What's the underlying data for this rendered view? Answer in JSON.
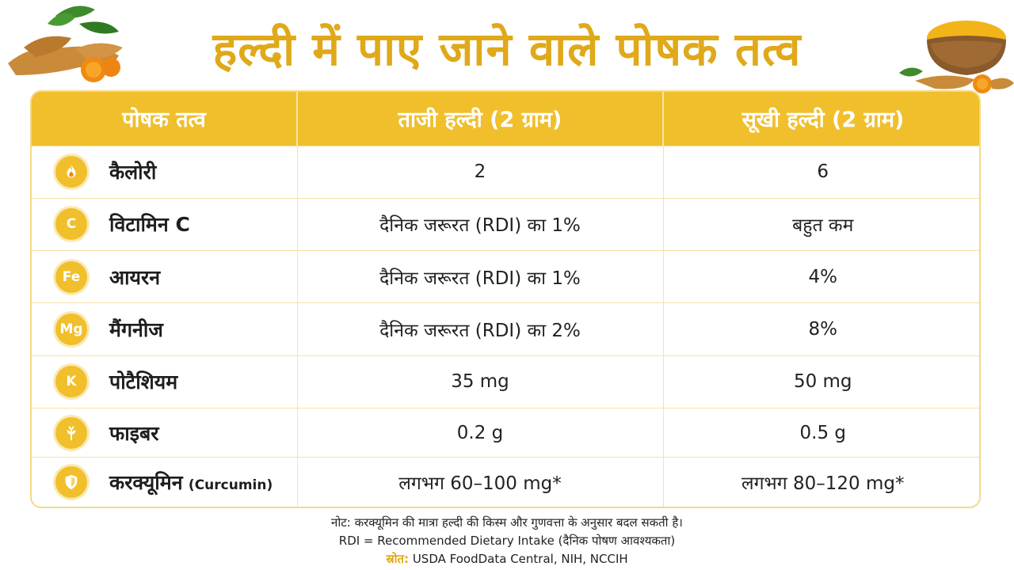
{
  "title": "हल्दी में पाए जाने वाले पोषक तत्व",
  "table": {
    "headers": [
      "पोषक तत्व",
      "ताजी हल्दी (2 ग्राम)",
      "सूखी हल्दी (2 ग्राम)"
    ],
    "rows": [
      {
        "icon": "flame-icon",
        "badge": "",
        "name": "कैलोरी",
        "sub": "",
        "fresh": "2",
        "dry": "6"
      },
      {
        "icon": "vitamin-c-icon",
        "badge": "C",
        "name": "विटामिन C",
        "sub": "",
        "fresh": "दैनिक जरूरत (RDI) का 1%",
        "dry": "बहुत कम"
      },
      {
        "icon": "iron-icon",
        "badge": "Fe",
        "name": "आयरन",
        "sub": "",
        "fresh": "दैनिक जरूरत (RDI) का 1%",
        "dry": "4%"
      },
      {
        "icon": "manganese-icon",
        "badge": "Mg",
        "name": "मैंगनीज",
        "sub": "",
        "fresh": "दैनिक जरूरत (RDI) का 2%",
        "dry": "8%"
      },
      {
        "icon": "potassium-icon",
        "badge": "K",
        "name": "पोटैशियम",
        "sub": "",
        "fresh": "35 mg",
        "dry": "50 mg"
      },
      {
        "icon": "wheat-icon",
        "badge": "",
        "name": "फाइबर",
        "sub": "",
        "fresh": "0.2 g",
        "dry": "0.5 g"
      },
      {
        "icon": "shield-icon",
        "badge": "",
        "name": "करक्यूमिन",
        "sub": "(Curcumin)",
        "fresh": "लगभग 60–100 mg*",
        "dry": "लगभग 80–120 mg*"
      }
    ]
  },
  "footer": {
    "note": "नोट: करक्यूमिन की मात्रा हल्दी की किस्म और गुणवत्ता के अनुसार बदल सकती है।",
    "rdi": "RDI = Recommended Dietary Intake (दैनिक पोषण आवश्यकता)",
    "source_label": "स्रोत:",
    "source_text": "USDA FoodData Central, NIH, NCCIH"
  },
  "colors": {
    "accent": "#f0bf2b",
    "title": "#e0a91a",
    "grid": "#f6e3a6"
  }
}
